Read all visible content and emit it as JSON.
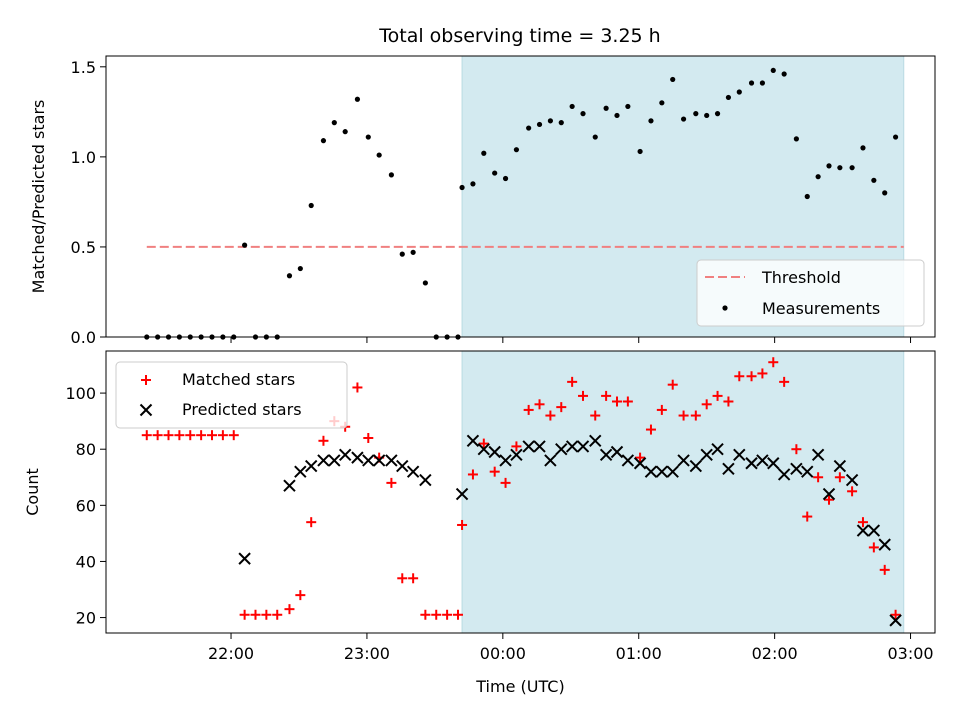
{
  "chart_data": {
    "type": "scatter",
    "title": "Total observing time = 3.25 h",
    "xlabel": "Time (UTC)",
    "x_unit": "hours after 00:00 UTC",
    "x_ticks": [
      {
        "value": -2,
        "label": "22:00"
      },
      {
        "value": -1,
        "label": "23:00"
      },
      {
        "value": 0,
        "label": "00:00"
      },
      {
        "value": 1,
        "label": "01:00"
      },
      {
        "value": 2,
        "label": "02:00"
      },
      {
        "value": 3,
        "label": "03:00"
      }
    ],
    "xlim": [
      -2.92,
      3.18
    ],
    "shaded_region": {
      "x_start": -0.3,
      "x_end": 2.95,
      "color": "#d3eaf0"
    },
    "panels": [
      {
        "id": "top",
        "ylabel": "Matched/Predicted stars",
        "ylim": [
          0,
          1.56
        ],
        "y_ticks": [
          0.0,
          0.5,
          1.0,
          1.5
        ],
        "y_tick_labels": [
          "0.0",
          "0.5",
          "1.0",
          "1.5"
        ],
        "legend_position": "lower-right",
        "threshold": {
          "name": "Threshold",
          "value": 0.5,
          "x_start": -2.62,
          "x_end": 2.95,
          "color": "#f08080"
        },
        "series": [
          {
            "name": "Measurements",
            "marker": "dot",
            "color": "#000000",
            "points": [
              [
                -2.62,
                0
              ],
              [
                -2.54,
                0
              ],
              [
                -2.46,
                0
              ],
              [
                -2.38,
                0
              ],
              [
                -2.3,
                0
              ],
              [
                -2.22,
                0
              ],
              [
                -2.14,
                0
              ],
              [
                -2.06,
                0
              ],
              [
                -1.98,
                0
              ],
              [
                -1.9,
                0.51
              ],
              [
                -1.82,
                0
              ],
              [
                -1.74,
                0
              ],
              [
                -1.66,
                0
              ],
              [
                -1.57,
                0.34
              ],
              [
                -1.49,
                0.38
              ],
              [
                -1.41,
                0.73
              ],
              [
                -1.32,
                1.09
              ],
              [
                -1.24,
                1.19
              ],
              [
                -1.16,
                1.14
              ],
              [
                -1.07,
                1.32
              ],
              [
                -0.99,
                1.11
              ],
              [
                -0.91,
                1.01
              ],
              [
                -0.82,
                0.9
              ],
              [
                -0.74,
                0.46
              ],
              [
                -0.66,
                0.47
              ],
              [
                -0.57,
                0.3
              ],
              [
                -0.49,
                0
              ],
              [
                -0.41,
                0
              ],
              [
                -0.33,
                0
              ],
              [
                -0.3,
                0.83
              ],
              [
                -0.22,
                0.85
              ],
              [
                -0.14,
                1.02
              ],
              [
                -0.06,
                0.91
              ],
              [
                0.02,
                0.88
              ],
              [
                0.1,
                1.04
              ],
              [
                0.19,
                1.16
              ],
              [
                0.27,
                1.18
              ],
              [
                0.35,
                1.2
              ],
              [
                0.43,
                1.19
              ],
              [
                0.51,
                1.28
              ],
              [
                0.59,
                1.24
              ],
              [
                0.68,
                1.11
              ],
              [
                0.76,
                1.27
              ],
              [
                0.84,
                1.23
              ],
              [
                0.92,
                1.28
              ],
              [
                1.01,
                1.03
              ],
              [
                1.09,
                1.2
              ],
              [
                1.17,
                1.3
              ],
              [
                1.25,
                1.43
              ],
              [
                1.33,
                1.21
              ],
              [
                1.42,
                1.24
              ],
              [
                1.5,
                1.23
              ],
              [
                1.58,
                1.24
              ],
              [
                1.66,
                1.33
              ],
              [
                1.74,
                1.36
              ],
              [
                1.83,
                1.41
              ],
              [
                1.91,
                1.41
              ],
              [
                1.99,
                1.48
              ],
              [
                2.07,
                1.46
              ],
              [
                2.16,
                1.1
              ],
              [
                2.24,
                0.78
              ],
              [
                2.32,
                0.89
              ],
              [
                2.4,
                0.95
              ],
              [
                2.48,
                0.94
              ],
              [
                2.57,
                0.94
              ],
              [
                2.65,
                1.05
              ],
              [
                2.73,
                0.87
              ],
              [
                2.81,
                0.8
              ],
              [
                2.89,
                1.11
              ]
            ]
          }
        ]
      },
      {
        "id": "bottom",
        "ylabel": "Count",
        "ylim": [
          14.5,
          115
        ],
        "y_ticks": [
          20,
          40,
          60,
          80,
          100
        ],
        "y_tick_labels": [
          "20",
          "40",
          "60",
          "80",
          "100"
        ],
        "legend_position": "upper-left",
        "series": [
          {
            "name": "Matched stars",
            "marker": "plus",
            "color": "#ff0000",
            "points": [
              [
                -2.62,
                85
              ],
              [
                -2.54,
                85
              ],
              [
                -2.46,
                85
              ],
              [
                -2.38,
                85
              ],
              [
                -2.3,
                85
              ],
              [
                -2.22,
                85
              ],
              [
                -2.14,
                85
              ],
              [
                -2.06,
                85
              ],
              [
                -1.98,
                85
              ],
              [
                -1.9,
                21
              ],
              [
                -1.82,
                21
              ],
              [
                -1.74,
                21
              ],
              [
                -1.66,
                21
              ],
              [
                -1.57,
                23
              ],
              [
                -1.49,
                28
              ],
              [
                -1.41,
                54
              ],
              [
                -1.32,
                83
              ],
              [
                -1.24,
                90
              ],
              [
                -1.16,
                88
              ],
              [
                -1.07,
                102
              ],
              [
                -0.99,
                84
              ],
              [
                -0.91,
                77
              ],
              [
                -0.82,
                68
              ],
              [
                -0.74,
                34
              ],
              [
                -0.66,
                34
              ],
              [
                -0.57,
                21
              ],
              [
                -0.49,
                21
              ],
              [
                -0.41,
                21
              ],
              [
                -0.33,
                21
              ],
              [
                -0.3,
                53
              ],
              [
                -0.22,
                71
              ],
              [
                -0.14,
                82
              ],
              [
                -0.06,
                72
              ],
              [
                0.02,
                68
              ],
              [
                0.1,
                81
              ],
              [
                0.19,
                94
              ],
              [
                0.27,
                96
              ],
              [
                0.35,
                92
              ],
              [
                0.43,
                95
              ],
              [
                0.51,
                104
              ],
              [
                0.59,
                99
              ],
              [
                0.68,
                92
              ],
              [
                0.76,
                99
              ],
              [
                0.84,
                97
              ],
              [
                0.92,
                97
              ],
              [
                1.01,
                77
              ],
              [
                1.09,
                87
              ],
              [
                1.17,
                94
              ],
              [
                1.25,
                103
              ],
              [
                1.33,
                92
              ],
              [
                1.42,
                92
              ],
              [
                1.5,
                96
              ],
              [
                1.58,
                99
              ],
              [
                1.66,
                97
              ],
              [
                1.74,
                106
              ],
              [
                1.83,
                106
              ],
              [
                1.91,
                107
              ],
              [
                1.99,
                111
              ],
              [
                2.07,
                104
              ],
              [
                2.16,
                80
              ],
              [
                2.24,
                56
              ],
              [
                2.32,
                70
              ],
              [
                2.4,
                62
              ],
              [
                2.48,
                70
              ],
              [
                2.57,
                65
              ],
              [
                2.65,
                54
              ],
              [
                2.73,
                45
              ],
              [
                2.81,
                37
              ],
              [
                2.89,
                21
              ]
            ]
          },
          {
            "name": "Predicted stars",
            "marker": "x",
            "color": "#000000",
            "points": [
              [
                -1.9,
                41
              ],
              [
                -1.57,
                67
              ],
              [
                -1.49,
                72
              ],
              [
                -1.41,
                74
              ],
              [
                -1.32,
                76
              ],
              [
                -1.24,
                76
              ],
              [
                -1.16,
                78
              ],
              [
                -1.07,
                77
              ],
              [
                -0.99,
                76
              ],
              [
                -0.91,
                76
              ],
              [
                -0.82,
                76
              ],
              [
                -0.74,
                74
              ],
              [
                -0.66,
                72
              ],
              [
                -0.57,
                69
              ],
              [
                -0.3,
                64
              ],
              [
                -0.22,
                83
              ],
              [
                -0.14,
                80
              ],
              [
                -0.06,
                79
              ],
              [
                0.02,
                76
              ],
              [
                0.1,
                78
              ],
              [
                0.19,
                81
              ],
              [
                0.27,
                81
              ],
              [
                0.35,
                76
              ],
              [
                0.43,
                80
              ],
              [
                0.51,
                81
              ],
              [
                0.59,
                81
              ],
              [
                0.68,
                83
              ],
              [
                0.76,
                78
              ],
              [
                0.84,
                79
              ],
              [
                0.92,
                76
              ],
              [
                1.01,
                75
              ],
              [
                1.09,
                72
              ],
              [
                1.17,
                72
              ],
              [
                1.25,
                72
              ],
              [
                1.33,
                76
              ],
              [
                1.42,
                74
              ],
              [
                1.5,
                78
              ],
              [
                1.58,
                80
              ],
              [
                1.66,
                73
              ],
              [
                1.74,
                78
              ],
              [
                1.83,
                75
              ],
              [
                1.91,
                76
              ],
              [
                1.99,
                75
              ],
              [
                2.07,
                71
              ],
              [
                2.16,
                73
              ],
              [
                2.24,
                72
              ],
              [
                2.32,
                78
              ],
              [
                2.4,
                64
              ],
              [
                2.48,
                74
              ],
              [
                2.57,
                69
              ],
              [
                2.65,
                51
              ],
              [
                2.73,
                51
              ],
              [
                2.81,
                46
              ],
              [
                2.89,
                19
              ]
            ]
          }
        ]
      }
    ]
  }
}
